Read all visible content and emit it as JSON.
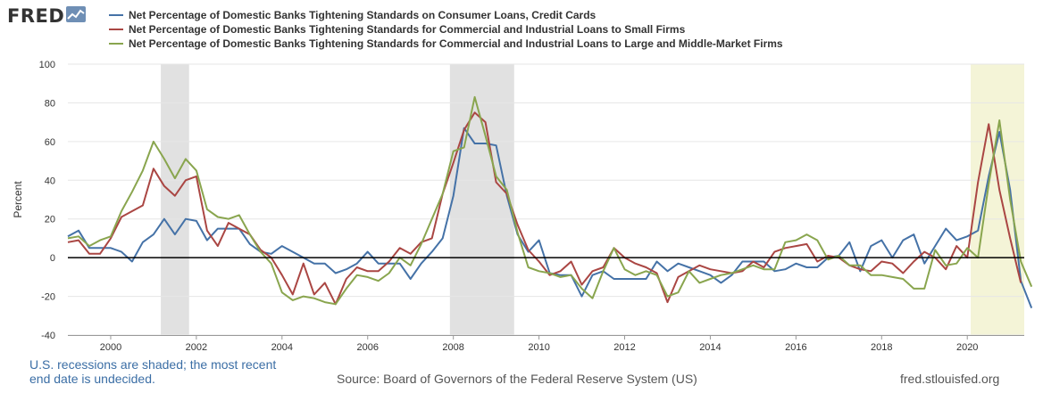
{
  "logo": {
    "text": "FRED",
    "icon": "chart-line-icon"
  },
  "footer": {
    "note_line1": "U.S. recessions are shaded; the most recent",
    "note_line2": "end date is undecided.",
    "source": "Source: Board of Governors of the Federal Reserve System (US)",
    "url": "fred.stlouisfed.org"
  },
  "colors": {
    "consumer": "#4572a7",
    "small": "#aa4643",
    "large": "#89a54e",
    "recession": "#e1e1e1",
    "current_recession": "#f4f4d7",
    "zero_line": "#000000",
    "grid": "#e6e6e6"
  },
  "chart_data": {
    "type": "line",
    "title": "",
    "xlabel": "",
    "ylabel": "Percent",
    "ylim": [
      -40,
      100
    ],
    "xlim": [
      1999.0,
      2021.33
    ],
    "yticks": [
      -40,
      -20,
      0,
      20,
      40,
      60,
      80,
      100
    ],
    "xticks": [
      2000,
      2002,
      2004,
      2006,
      2008,
      2010,
      2012,
      2014,
      2016,
      2018,
      2020
    ],
    "zero_line": true,
    "grid": "horizontal",
    "legend_position": "top",
    "recessions": [
      {
        "start": 2001.17,
        "end": 2001.83
      },
      {
        "start": 2007.92,
        "end": 2009.42
      },
      {
        "start": 2020.08,
        "end": 2021.33,
        "ongoing": true
      }
    ],
    "series": [
      {
        "name": "Net Percentage of Domestic Banks Tightening Standards on Consumer Loans, Credit Cards",
        "color": "#4572a7",
        "start": 1999.0,
        "step": 0.25,
        "values": [
          11,
          14,
          5,
          5,
          5,
          3,
          -2,
          8,
          12,
          20,
          12,
          20,
          19,
          9,
          15,
          15,
          15,
          7,
          3,
          2,
          6,
          3,
          0,
          -3,
          -3,
          -8,
          -6,
          -3,
          3,
          -3,
          -3,
          -3,
          -11,
          -3,
          3,
          10,
          32,
          67,
          59,
          59,
          58,
          32,
          12,
          3,
          9,
          -8,
          -9,
          -9,
          -20,
          -9,
          -7,
          -11,
          -11,
          -11,
          -11,
          -2,
          -7,
          -3,
          -5,
          -7,
          -9,
          -13,
          -9,
          -2,
          -2,
          -2,
          -7,
          -6,
          -3,
          -5,
          -5,
          0,
          1,
          8,
          -7,
          6,
          9,
          0,
          9,
          12,
          -3,
          6,
          15,
          9,
          11,
          14,
          42,
          65,
          35,
          -12,
          -26
        ]
      },
      {
        "name": "Net Percentage of Domestic Banks Tightening Standards for Commercial and Industrial Loans to Small Firms",
        "color": "#aa4643",
        "start": 1999.0,
        "step": 0.25,
        "values": [
          8,
          9,
          2,
          2,
          10,
          21,
          24,
          27,
          46,
          37,
          32,
          40,
          42,
          14,
          6,
          18,
          15,
          12,
          4,
          0,
          -9,
          -19,
          -3,
          -19,
          -13,
          -24,
          -11,
          -5,
          -7,
          -7,
          -2,
          5,
          2,
          8,
          10,
          33,
          49,
          66,
          75,
          70,
          39,
          33,
          17,
          4,
          -2,
          -9,
          -7,
          -2,
          -14,
          -7,
          -5,
          5,
          0,
          -3,
          -5,
          -8,
          -23,
          -10,
          -7,
          -4,
          -6,
          -7,
          -8,
          -7,
          -2,
          -5,
          3,
          5,
          6,
          7,
          -2,
          1,
          0,
          -4,
          -6,
          -7,
          -2,
          -3,
          -8,
          -2,
          3,
          0,
          -6,
          6,
          0,
          39,
          69,
          35,
          10,
          -13
        ]
      },
      {
        "name": "Net Percentage of Domestic Banks Tightening Standards for Commercial and Industrial Loans to Large and Middle-Market Firms",
        "color": "#89a54e",
        "start": 1999.0,
        "step": 0.25,
        "values": [
          10,
          11,
          6,
          9,
          11,
          24,
          34,
          45,
          60,
          51,
          41,
          51,
          45,
          25,
          21,
          20,
          22,
          12,
          3,
          -3,
          -18,
          -22,
          -20,
          -21,
          -23,
          -24,
          -16,
          -9,
          -10,
          -12,
          -8,
          0,
          -4,
          7,
          20,
          33,
          55,
          57,
          83,
          63,
          42,
          35,
          13,
          -5,
          -7,
          -8,
          -10,
          -9,
          -16,
          -21,
          -7,
          5,
          -6,
          -9,
          -7,
          -9,
          -20,
          -18,
          -7,
          -13,
          -11,
          -9,
          -8,
          -6,
          -4,
          -6,
          -6,
          8,
          9,
          12,
          9,
          -1,
          1,
          -4,
          -4,
          -9,
          -9,
          -10,
          -11,
          -16,
          -16,
          4,
          -4,
          -3,
          5,
          0,
          38,
          71,
          30,
          -2,
          -15
        ]
      }
    ]
  }
}
